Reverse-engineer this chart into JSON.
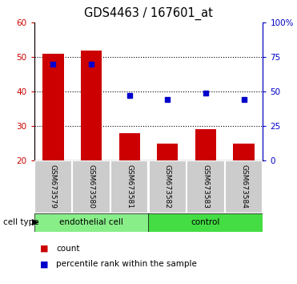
{
  "title": "GDS4463 / 167601_at",
  "samples": [
    "GSM673579",
    "GSM673580",
    "GSM673581",
    "GSM673582",
    "GSM673583",
    "GSM673584"
  ],
  "count_values": [
    51,
    52,
    28,
    25,
    29,
    25
  ],
  "percentile_values": [
    70,
    70,
    47,
    44,
    49,
    44
  ],
  "ylim_left": [
    20,
    60
  ],
  "ylim_right": [
    0,
    100
  ],
  "yticks_left": [
    20,
    30,
    40,
    50,
    60
  ],
  "yticks_right": [
    0,
    25,
    50,
    75,
    100
  ],
  "yticklabels_right": [
    "0",
    "25",
    "50",
    "75",
    "100%"
  ],
  "bar_color": "#cc0000",
  "dot_color": "#0000cc",
  "group1_label": "endothelial cell",
  "group2_label": "control",
  "cell_type_label": "cell type",
  "legend_count": "count",
  "legend_percentile": "percentile rank within the sample",
  "sample_bg_color": "#cccccc",
  "group_color1": "#88ee88",
  "group_color2": "#44dd44",
  "base_value": 20,
  "grid_lines": [
    30,
    40,
    50
  ],
  "fig_width": 3.71,
  "fig_height": 3.54,
  "dpi": 100
}
